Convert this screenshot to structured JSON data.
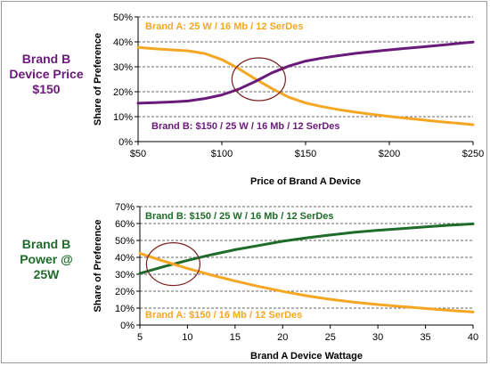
{
  "side_labels": {
    "top": [
      "Brand B",
      "Device Price",
      "$150"
    ],
    "bottom": [
      "Brand B",
      "Power @",
      "25W"
    ]
  },
  "chart_data": [
    {
      "type": "line",
      "title": "",
      "xlabel": "Price of Brand A Device",
      "ylabel": "Share of Preference",
      "xlim": [
        50,
        250
      ],
      "ylim": [
        0,
        50
      ],
      "x_ticks": [
        50,
        100,
        150,
        200,
        250
      ],
      "x_tick_labels": [
        "$50",
        "$100",
        "$150",
        "$200",
        "$250"
      ],
      "y_ticks": [
        0,
        10,
        20,
        30,
        40,
        50
      ],
      "y_tick_labels": [
        "0%",
        "10%",
        "20%",
        "30%",
        "40%",
        "50%"
      ],
      "grid": "horizontal-dashed",
      "series": [
        {
          "name": "Brand A: 25 W / 16 Mb / 12 SerDes",
          "color": "#f5a623",
          "x": [
            50,
            60,
            70,
            80,
            90,
            100,
            110,
            120,
            130,
            140,
            150,
            160,
            170,
            180,
            190,
            200,
            210,
            220,
            230,
            240,
            250
          ],
          "y": [
            37.8,
            37.2,
            36.8,
            36.4,
            35.3,
            32.9,
            29.3,
            25.1,
            21.2,
            17.8,
            15.5,
            14.0,
            12.8,
            11.8,
            10.9,
            10.1,
            9.4,
            8.7,
            8.0,
            7.4,
            6.8
          ]
        },
        {
          "name": "Brand B: $150 / 25 W / 16 Mb / 12 SerDes",
          "color": "#6a1a7a",
          "x": [
            50,
            60,
            70,
            80,
            90,
            100,
            110,
            120,
            130,
            140,
            150,
            160,
            170,
            180,
            190,
            200,
            210,
            220,
            230,
            240,
            250
          ],
          "y": [
            15.4,
            15.6,
            15.9,
            16.3,
            17.3,
            18.7,
            21.0,
            24.1,
            27.6,
            30.3,
            32.3,
            33.5,
            34.5,
            35.4,
            36.1,
            36.8,
            37.4,
            38.0,
            38.6,
            39.3,
            39.9
          ]
        }
      ],
      "annotation": {
        "shape": "ellipse",
        "around": "crossover",
        "x": 122,
        "y": 25
      }
    },
    {
      "type": "line",
      "title": "",
      "xlabel": "Brand A Device Wattage",
      "ylabel": "Share of Preference",
      "xlim": [
        5,
        40
      ],
      "ylim": [
        0,
        70
      ],
      "x_ticks": [
        5,
        10,
        15,
        20,
        25,
        30,
        35,
        40
      ],
      "x_tick_labels": [
        "5",
        "10",
        "15",
        "20",
        "25",
        "30",
        "35",
        "40"
      ],
      "y_ticks": [
        0,
        10,
        20,
        30,
        40,
        50,
        60,
        70
      ],
      "y_tick_labels": [
        "0%",
        "10%",
        "20%",
        "30%",
        "40%",
        "50%",
        "60%",
        "70%"
      ],
      "grid": "horizontal-dashed",
      "series": [
        {
          "name": "Brand B: $150 / 25 W / 16 Mb / 12 SerDes",
          "color": "#1f6b2a",
          "x": [
            5,
            7.5,
            10,
            12.5,
            15,
            17.5,
            20,
            22.5,
            25,
            27.5,
            30,
            32.5,
            35,
            37.5,
            40
          ],
          "y": [
            30.5,
            34.5,
            38.2,
            41.5,
            44.5,
            47.0,
            49.5,
            51.5,
            53.2,
            54.8,
            56.0,
            57.0,
            58.0,
            59.0,
            59.8
          ]
        },
        {
          "name": "Brand A: $150 / 16 Mb / 12 SerDes",
          "color": "#f5a623",
          "x": [
            5,
            7.5,
            10,
            12.5,
            15,
            17.5,
            20,
            22.5,
            25,
            27.5,
            30,
            32.5,
            35,
            37.5,
            40
          ],
          "y": [
            42.3,
            37.8,
            33.5,
            29.6,
            26.0,
            22.8,
            19.9,
            17.3,
            15.2,
            13.5,
            12.1,
            10.9,
            9.8,
            8.7,
            7.7
          ]
        }
      ],
      "annotation": {
        "shape": "ellipse",
        "around": "crossover",
        "x": 8.5,
        "y": 36
      }
    }
  ]
}
